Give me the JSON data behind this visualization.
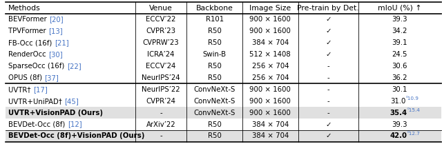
{
  "headers": [
    "Methods",
    "Venue",
    "Backbone",
    "Image Size",
    "Pre-train by Det.",
    "mIoU (%) ↑"
  ],
  "rows": [
    {
      "method": "BEVFormer ",
      "ref": "[20]",
      "venue": "ECCV’22",
      "backbone": "R101",
      "imgsize": "900 × 1600",
      "pretrain": "✓",
      "miou": "39.3",
      "sup": "",
      "bold": false,
      "gray": false
    },
    {
      "method": "TPVFormer ",
      "ref": "[13]",
      "venue": "CVPR’23",
      "backbone": "R50",
      "imgsize": "900 × 1600",
      "pretrain": "✓",
      "miou": "34.2",
      "sup": "",
      "bold": false,
      "gray": false
    },
    {
      "method": "FB-Occ (16f) ",
      "ref": "[21]",
      "venue": "CVPRW’23",
      "backbone": "R50",
      "imgsize": "384 × 704",
      "pretrain": "✓",
      "miou": "39.1",
      "sup": "",
      "bold": false,
      "gray": false
    },
    {
      "method": "RenderOcc ",
      "ref": "[30]",
      "venue": "ICRA’24",
      "backbone": "Swin-B",
      "imgsize": "512 × 1408",
      "pretrain": "✓",
      "miou": "24.5",
      "sup": "",
      "bold": false,
      "gray": false
    },
    {
      "method": "SparseOcc (16f) ",
      "ref": "[22]",
      "venue": "ECCV’24",
      "backbone": "R50",
      "imgsize": "256 × 704",
      "pretrain": "-",
      "miou": "30.6",
      "sup": "",
      "bold": false,
      "gray": false
    },
    {
      "method": "OPUS (8f) ",
      "ref": "[37]",
      "venue": "NeurIPS’24",
      "backbone": "R50",
      "imgsize": "256 × 704",
      "pretrain": "-",
      "miou": "36.2",
      "sup": "",
      "bold": false,
      "gray": false
    },
    {
      "method": "UVTR† ",
      "ref": "[17]",
      "venue": "NeurIPS’22",
      "backbone": "ConvNeXt-S",
      "imgsize": "900 × 1600",
      "pretrain": "-",
      "miou": "30.1",
      "sup": "",
      "bold": false,
      "gray": false
    },
    {
      "method": "UVTR+UniPAD† ",
      "ref": "[45]",
      "venue": "CVPR’24",
      "backbone": "ConvNeXt-S",
      "imgsize": "900 × 1600",
      "pretrain": "-",
      "miou": "31.0",
      "sup": "⁰10.9",
      "bold": false,
      "gray": false
    },
    {
      "method": "UVTR+VisionPAD (Ours)",
      "ref": "",
      "venue": "-",
      "backbone": "ConvNeXt-S",
      "imgsize": "900 × 1600",
      "pretrain": "-",
      "miou": "35.4",
      "sup": "⁰15.4",
      "bold": true,
      "gray": true
    },
    {
      "method": "BEVDet-Occ (8f) ",
      "ref": "[12]",
      "venue": "ArXiv’22",
      "backbone": "R50",
      "imgsize": "384 × 704",
      "pretrain": "✓",
      "miou": "39.3",
      "sup": "",
      "bold": false,
      "gray": false
    },
    {
      "method": "BEVDet-Occ (8f)+VisionPAD (Ours)",
      "ref": "",
      "venue": "-",
      "backbone": "R50",
      "imgsize": "384 × 704",
      "pretrain": "✓",
      "miou": "42.0",
      "sup": "⁰12.7",
      "bold": true,
      "gray": true
    }
  ],
  "group_separators": [
    6,
    9
  ],
  "thin_separator": [
    9
  ],
  "col_props": [
    0.298,
    0.118,
    0.128,
    0.128,
    0.138,
    0.19
  ],
  "ref_color": "#4472c4",
  "sup_color": "#4472c4",
  "gray_bg": "#e0e0e0",
  "white_bg": "#ffffff",
  "figure_bg": "#ffffff",
  "fs_header": 7.8,
  "fs_data": 7.3
}
